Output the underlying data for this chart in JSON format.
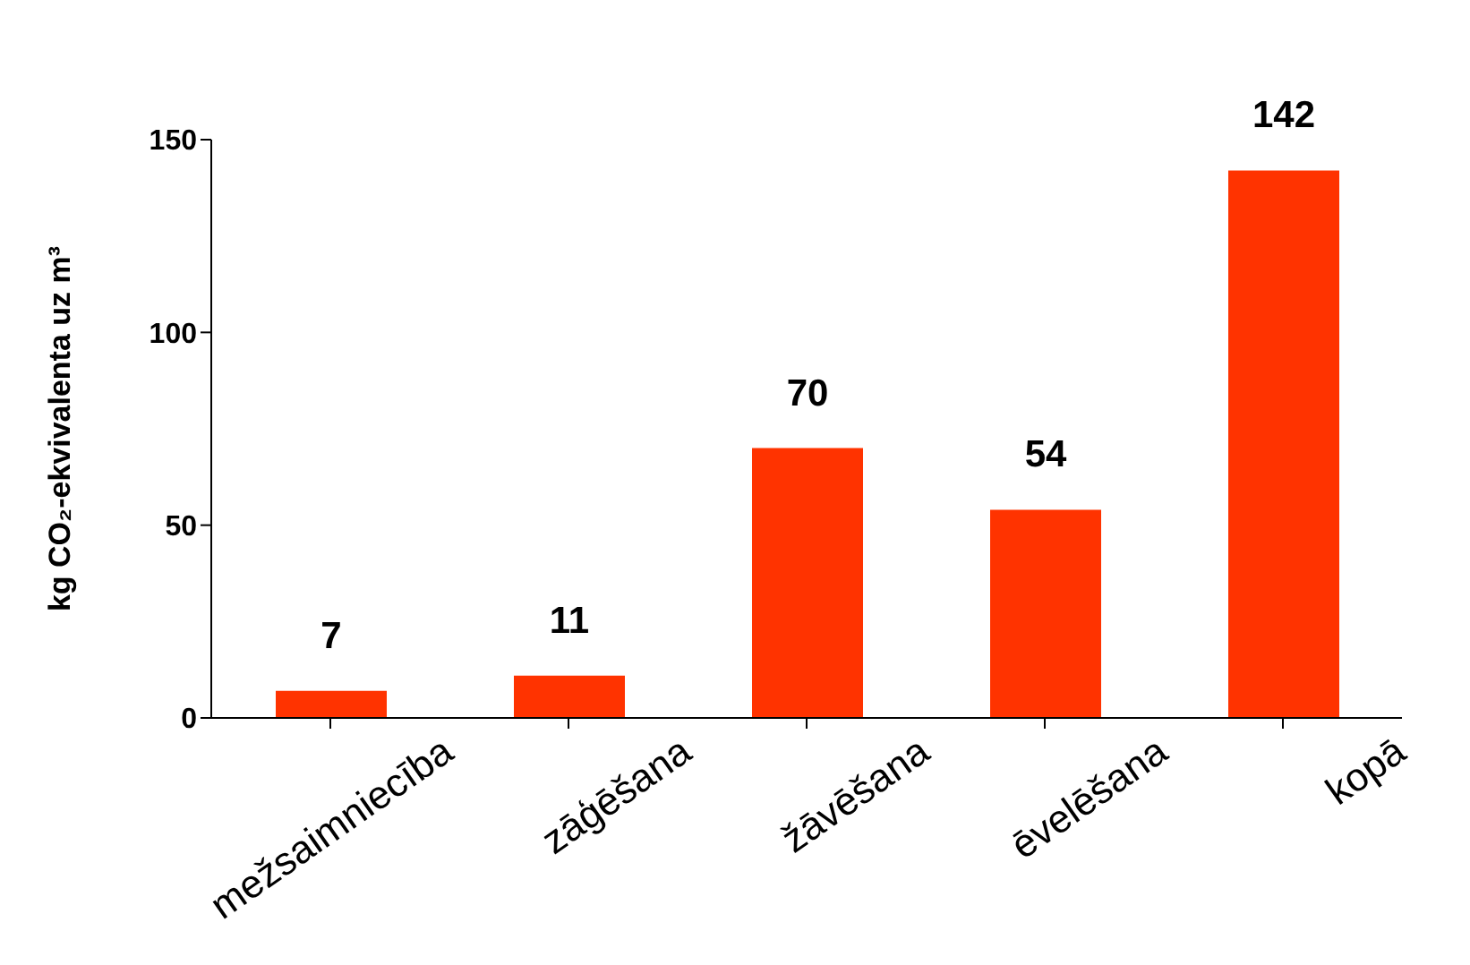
{
  "chart_data": {
    "type": "bar",
    "ylabel": "kg CO₂-ekvivalenta uz m³",
    "categories": [
      "mežsaimniecība",
      "zāģēšana",
      "žāvēšana",
      "ēvelēšana",
      "kopā"
    ],
    "values": [
      7,
      11,
      70,
      54,
      142
    ],
    "color": "#ff3300",
    "ylim": [
      0,
      150
    ],
    "yticks": [
      0,
      50,
      100,
      150
    ],
    "grid": false,
    "data_labels": true
  }
}
